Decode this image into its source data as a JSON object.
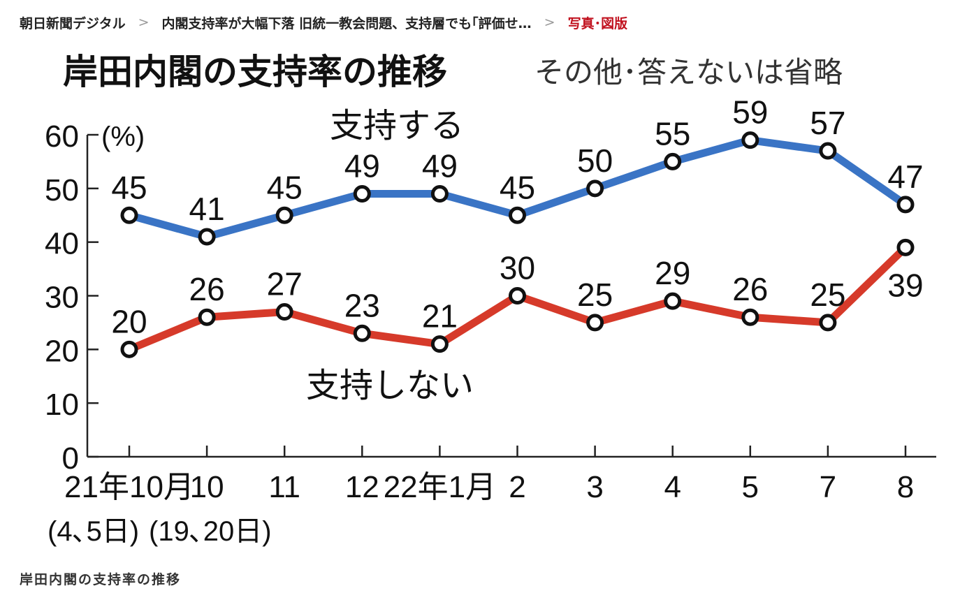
{
  "breadcrumb": {
    "site": "朝日新聞デジタル",
    "sep1": ">",
    "article": "内閣支持率が大幅下落 旧統一教会問題、支持層でも｢評価せ…",
    "sep2": ">",
    "current": "写真･図版"
  },
  "caption": "岸田内閣の支持率の推移",
  "colors": {
    "support": "#3a74c5",
    "oppose": "#d63a2a",
    "crumb_current": "#c1121f"
  },
  "chart_data": {
    "type": "line",
    "title": "岸田内閣の支持率の推移",
    "subtitle": "その他･答えないは省略",
    "ylabel": "(%)",
    "ylim": [
      0,
      60
    ],
    "yticks": [
      "0",
      "10",
      "20",
      "30",
      "40",
      "50",
      "60"
    ],
    "categories": [
      "21年10月",
      "10",
      "11",
      "12",
      "22年1月",
      "2",
      "3",
      "4",
      "5",
      "7",
      "8"
    ],
    "category_sublabels": [
      "(4､5日)",
      "(19､20日)"
    ],
    "grid": false,
    "series": [
      {
        "name": "支持する",
        "values": [
          45,
          41,
          45,
          49,
          49,
          45,
          50,
          55,
          59,
          57,
          47
        ]
      },
      {
        "name": "支持しない",
        "values": [
          20,
          26,
          27,
          23,
          21,
          30,
          25,
          29,
          26,
          25,
          39
        ]
      }
    ]
  }
}
